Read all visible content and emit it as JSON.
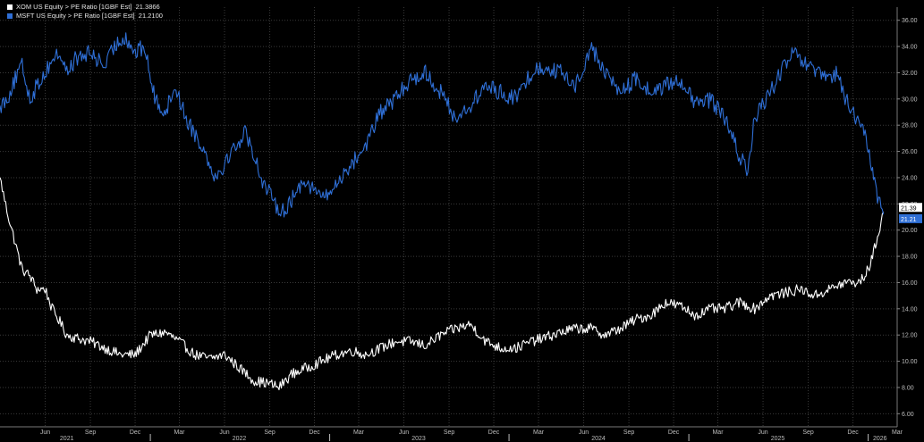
{
  "colors": {
    "background": "#000000",
    "xom": "#ffffff",
    "msft": "#2f6fd6",
    "grid": "#3a3a3a"
  },
  "legend": [
    {
      "label": "XOM US Equity > PE Ratio [1GBF Est]",
      "value": "21.3866",
      "color": "#ffffff"
    },
    {
      "label": "MSFT US Equity > PE Ratio [1GBF Est]",
      "value": "21.2100",
      "color": "#2f6fd6"
    }
  ],
  "chart_data": {
    "type": "line",
    "x_start": "2021-03-01",
    "x_end": "2026-03-01",
    "ylim": [
      5,
      37
    ],
    "yticks": [
      "6.00",
      "8.00",
      "10.00",
      "12.00",
      "14.00",
      "16.00",
      "18.00",
      "20.00",
      "22.00",
      "24.00",
      "26.00",
      "28.00",
      "30.00",
      "32.00",
      "34.00",
      "36.00"
    ],
    "xticks_month": [
      {
        "label": "Jun",
        "date": "2021-06-01"
      },
      {
        "label": "Sep",
        "date": "2021-09-01"
      },
      {
        "label": "Dec",
        "date": "2021-12-01"
      },
      {
        "label": "Mar",
        "date": "2022-03-01"
      },
      {
        "label": "Jun",
        "date": "2022-06-01"
      },
      {
        "label": "Sep",
        "date": "2022-09-01"
      },
      {
        "label": "Dec",
        "date": "2022-12-01"
      },
      {
        "label": "Mar",
        "date": "2023-03-01"
      },
      {
        "label": "Jun",
        "date": "2023-06-01"
      },
      {
        "label": "Sep",
        "date": "2023-09-01"
      },
      {
        "label": "Dec",
        "date": "2023-12-01"
      },
      {
        "label": "Mar",
        "date": "2024-03-01"
      },
      {
        "label": "Jun",
        "date": "2024-06-01"
      },
      {
        "label": "Sep",
        "date": "2024-09-01"
      },
      {
        "label": "Dec",
        "date": "2024-12-01"
      },
      {
        "label": "Mar",
        "date": "2025-03-01"
      },
      {
        "label": "Jun",
        "date": "2025-06-01"
      },
      {
        "label": "Sep",
        "date": "2025-09-01"
      },
      {
        "label": "Dec",
        "date": "2025-12-01"
      },
      {
        "label": "Mar",
        "date": "2026-03-01"
      }
    ],
    "xticks_year": [
      {
        "label": "2021",
        "date": "2021-07-15"
      },
      {
        "label": "2022",
        "date": "2022-07-01"
      },
      {
        "label": "2023",
        "date": "2023-07-01"
      },
      {
        "label": "2024",
        "date": "2024-07-01"
      },
      {
        "label": "2025",
        "date": "2025-07-01"
      },
      {
        "label": "2026",
        "date": "2026-01-25"
      }
    ],
    "year_boundaries": [
      "2022-01-01",
      "2023-01-01",
      "2024-01-01",
      "2025-01-01",
      "2026-01-01"
    ],
    "grid": true,
    "series": [
      {
        "name": "XOM US Equity > PE Ratio [1GBF Est]",
        "color": "#ffffff",
        "x": [
          "2021-03-01",
          "2021-03-15",
          "2021-04-01",
          "2021-04-15",
          "2021-05-01",
          "2021-05-15",
          "2021-06-01",
          "2021-06-15",
          "2021-07-01",
          "2021-07-15",
          "2021-08-01",
          "2021-09-01",
          "2021-10-01",
          "2021-11-01",
          "2021-12-01",
          "2022-01-01",
          "2022-02-01",
          "2022-03-01",
          "2022-04-01",
          "2022-05-01",
          "2022-06-01",
          "2022-07-01",
          "2022-08-01",
          "2022-09-01",
          "2022-09-20",
          "2022-10-15",
          "2022-11-15",
          "2022-12-15",
          "2023-01-15",
          "2023-02-15",
          "2023-03-15",
          "2023-04-15",
          "2023-05-15",
          "2023-06-15",
          "2023-07-15",
          "2023-08-15",
          "2023-09-15",
          "2023-10-15",
          "2023-11-15",
          "2023-12-15",
          "2024-01-15",
          "2024-02-15",
          "2024-03-15",
          "2024-04-15",
          "2024-05-15",
          "2024-06-15",
          "2024-07-15",
          "2024-08-15",
          "2024-09-15",
          "2024-10-15",
          "2024-11-15",
          "2024-12-15",
          "2025-01-15",
          "2025-02-15",
          "2025-03-15",
          "2025-04-15",
          "2025-05-15",
          "2025-06-15",
          "2025-07-15",
          "2025-08-15",
          "2025-09-15",
          "2025-10-15",
          "2025-11-15",
          "2025-12-01",
          "2025-12-15",
          "2026-01-01",
          "2026-01-10",
          "2026-01-20",
          "2026-02-01"
        ],
        "values": [
          24.0,
          21.5,
          19.0,
          17.0,
          16.5,
          15.5,
          15.5,
          14.0,
          13.0,
          12.0,
          11.8,
          11.5,
          11.0,
          10.5,
          10.5,
          12.0,
          12.2,
          11.5,
          10.5,
          10.2,
          10.5,
          9.5,
          8.5,
          8.3,
          8.0,
          9.0,
          9.5,
          10.0,
          10.5,
          10.8,
          10.5,
          11.0,
          11.5,
          11.5,
          11.2,
          12.0,
          12.5,
          12.8,
          11.5,
          11.0,
          11.0,
          11.5,
          11.8,
          12.2,
          12.5,
          12.5,
          12.0,
          12.5,
          13.2,
          13.5,
          14.5,
          14.2,
          13.5,
          14.0,
          14.0,
          14.5,
          14.0,
          15.0,
          15.2,
          15.5,
          15.0,
          15.5,
          16.0,
          16.0,
          16.0,
          17.0,
          18.0,
          19.5,
          21.4
        ]
      },
      {
        "name": "MSFT US Equity > PE Ratio [1GBF Est]",
        "color": "#2f6fd6",
        "x": [
          "2021-03-01",
          "2021-03-15",
          "2021-04-01",
          "2021-04-15",
          "2021-05-01",
          "2021-05-15",
          "2021-06-01",
          "2021-06-15",
          "2021-07-01",
          "2021-07-15",
          "2021-08-01",
          "2021-09-01",
          "2021-10-01",
          "2021-10-20",
          "2021-11-10",
          "2021-12-01",
          "2021-12-20",
          "2022-01-10",
          "2022-02-01",
          "2022-02-20",
          "2022-03-15",
          "2022-04-15",
          "2022-05-15",
          "2022-06-15",
          "2022-07-15",
          "2022-08-15",
          "2022-09-10",
          "2022-09-30",
          "2022-10-20",
          "2022-11-10",
          "2022-12-01",
          "2022-12-25",
          "2023-01-15",
          "2023-02-01",
          "2023-02-15",
          "2023-03-15",
          "2023-04-15",
          "2023-05-15",
          "2023-06-15",
          "2023-07-15",
          "2023-08-15",
          "2023-09-15",
          "2023-10-15",
          "2023-11-15",
          "2023-12-15",
          "2024-01-15",
          "2024-02-15",
          "2024-03-15",
          "2024-04-15",
          "2024-05-15",
          "2024-06-01",
          "2024-06-15",
          "2024-07-15",
          "2024-08-15",
          "2024-09-15",
          "2024-10-15",
          "2024-11-15",
          "2024-12-15",
          "2025-01-15",
          "2025-02-15",
          "2025-03-15",
          "2025-04-10",
          "2025-05-01",
          "2025-05-15",
          "2025-06-15",
          "2025-07-15",
          "2025-08-01",
          "2025-08-15",
          "2025-09-15",
          "2025-10-15",
          "2025-11-01",
          "2025-11-15",
          "2025-12-15",
          "2026-01-01",
          "2026-01-10",
          "2026-01-20",
          "2026-02-01"
        ],
        "values": [
          29.5,
          30.0,
          31.5,
          32.5,
          30.0,
          31.0,
          32.0,
          33.0,
          33.5,
          32.0,
          33.0,
          33.5,
          32.5,
          34.0,
          34.8,
          33.5,
          34.0,
          30.0,
          29.0,
          31.0,
          28.5,
          26.5,
          24.0,
          26.0,
          27.5,
          24.0,
          22.0,
          21.5,
          22.5,
          24.0,
          23.0,
          22.5,
          23.5,
          24.5,
          25.0,
          26.5,
          29.0,
          30.0,
          31.5,
          32.0,
          30.5,
          28.5,
          29.5,
          31.0,
          30.5,
          30.0,
          32.0,
          32.5,
          32.0,
          31.0,
          32.5,
          34.0,
          32.0,
          30.5,
          31.5,
          30.5,
          31.0,
          31.5,
          29.5,
          30.0,
          28.5,
          26.0,
          24.5,
          28.5,
          30.5,
          32.5,
          33.5,
          33.0,
          32.0,
          31.5,
          32.0,
          30.0,
          28.0,
          26.5,
          24.5,
          22.5,
          21.2
        ]
      }
    ]
  },
  "last_value_labels": [
    {
      "series": "XOM US Equity > PE Ratio [1GBF Est]",
      "text": "21.39"
    },
    {
      "series": "MSFT US Equity > PE Ratio [1GBF Est]",
      "text": "21.21"
    }
  ]
}
